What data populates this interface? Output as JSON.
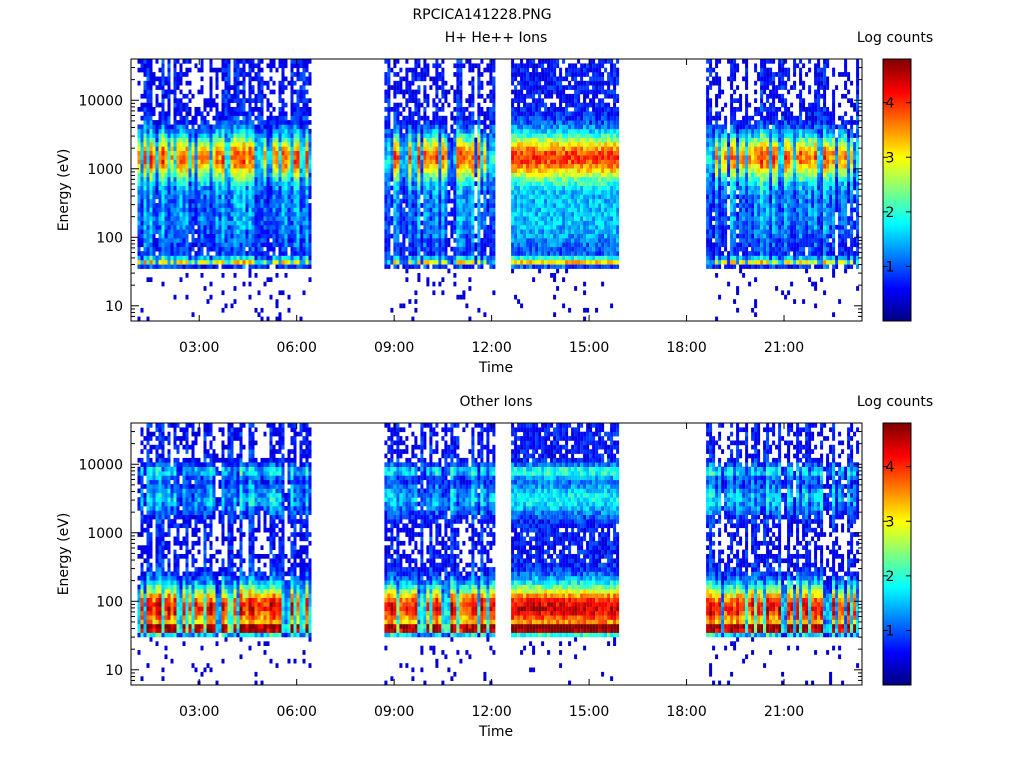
{
  "figure_title": "RPCICA141228.PNG",
  "colors": {
    "colormap": [
      "#00007f",
      "#0000ff",
      "#007fff",
      "#00ffff",
      "#7fff7f",
      "#ffff00",
      "#ff7f00",
      "#ff0000",
      "#7f0000"
    ],
    "axes": "#000000",
    "background": "#ffffff"
  },
  "chart_data": [
    {
      "type": "heatmap",
      "title": "H+ He++ Ions",
      "xlabel": "Time",
      "ylabel": "Energy (eV)",
      "xticks": [
        "03:00",
        "06:00",
        "09:00",
        "12:00",
        "15:00",
        "18:00",
        "21:00"
      ],
      "xtick_hours": [
        3,
        6,
        9,
        12,
        15,
        18,
        21
      ],
      "xlim_hours": [
        0.9,
        23.4
      ],
      "y_scale": "log",
      "ylim": [
        6,
        40000
      ],
      "yticks": [
        10,
        100,
        1000,
        10000
      ],
      "ytick_labels": [
        "10",
        "100",
        "1000",
        "10000"
      ],
      "colorbar": {
        "label": "Log counts",
        "ticks": [
          1,
          2,
          3,
          4
        ],
        "tick_labels": [
          "1",
          "2",
          "3",
          "4"
        ],
        "range": [
          0,
          4.8
        ]
      },
      "data_intervals_hours": [
        [
          1.1,
          6.4
        ],
        [
          8.7,
          12.1
        ],
        [
          12.6,
          15.9
        ],
        [
          18.6,
          23.3
        ]
      ],
      "peak_energy_ev": 1500,
      "low_band_energy_ev": 45
    },
    {
      "type": "heatmap",
      "title": "Other Ions",
      "xlabel": "Time",
      "ylabel": "Energy (eV)",
      "xticks": [
        "03:00",
        "06:00",
        "09:00",
        "12:00",
        "15:00",
        "18:00",
        "21:00"
      ],
      "xtick_hours": [
        3,
        6,
        9,
        12,
        15,
        18,
        21
      ],
      "xlim_hours": [
        0.9,
        23.4
      ],
      "y_scale": "log",
      "ylim": [
        6,
        40000
      ],
      "yticks": [
        10,
        100,
        1000,
        10000
      ],
      "ytick_labels": [
        "10",
        "100",
        "1000",
        "10000"
      ],
      "colorbar": {
        "label": "Log counts",
        "ticks": [
          1,
          2,
          3,
          4
        ],
        "tick_labels": [
          "1",
          "2",
          "3",
          "4"
        ],
        "range": [
          0,
          4.8
        ]
      },
      "data_intervals_hours": [
        [
          1.1,
          6.4
        ],
        [
          8.7,
          12.1
        ],
        [
          12.6,
          15.9
        ],
        [
          18.6,
          23.3
        ]
      ],
      "peak_energy_ev": 80,
      "low_band_energy_ev": 40
    }
  ]
}
